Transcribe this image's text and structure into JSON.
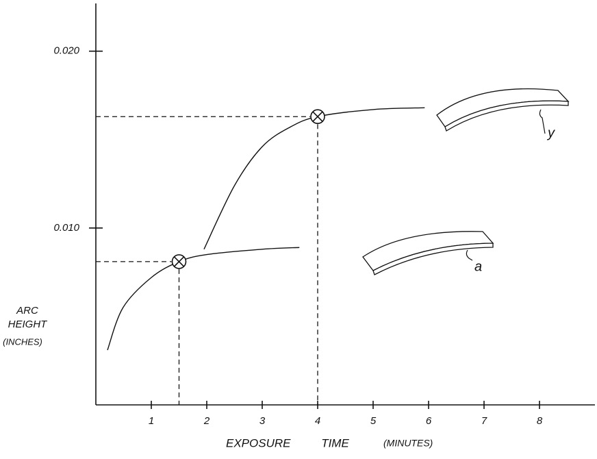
{
  "chart_data": {
    "type": "line",
    "x_label": "EXPOSURE TIME",
    "x_unit": "(MINUTES)",
    "y_label_lines": [
      "ARC",
      "HEIGHT"
    ],
    "y_unit": "(INCHES)",
    "xlim": [
      0,
      9.0
    ],
    "ylim": [
      0,
      0.0227
    ],
    "xticks": [
      1,
      2,
      3,
      4,
      5,
      6,
      7,
      8
    ],
    "yticks": [
      {
        "value": 0.01,
        "label": "0.010"
      },
      {
        "value": 0.02,
        "label": "0.020"
      }
    ],
    "series": [
      {
        "name": "a",
        "color": "#111111",
        "x": [
          0.21,
          0.49,
          1.0,
          1.5,
          2.0,
          3.0,
          3.67
        ],
        "values": [
          0.0031,
          0.0055,
          0.0072,
          0.0081,
          0.0085,
          0.0088,
          0.0089
        ],
        "saturation_point": {
          "x": 1.5,
          "y": 0.0081
        }
      },
      {
        "name": "y",
        "color": "#111111",
        "x": [
          1.95,
          2.5,
          3.0,
          3.5,
          4.0,
          5.0,
          5.93
        ],
        "values": [
          0.0088,
          0.0124,
          0.0146,
          0.0157,
          0.0163,
          0.0167,
          0.0168
        ],
        "saturation_point": {
          "x": 4.0,
          "y": 0.0163
        }
      }
    ]
  }
}
